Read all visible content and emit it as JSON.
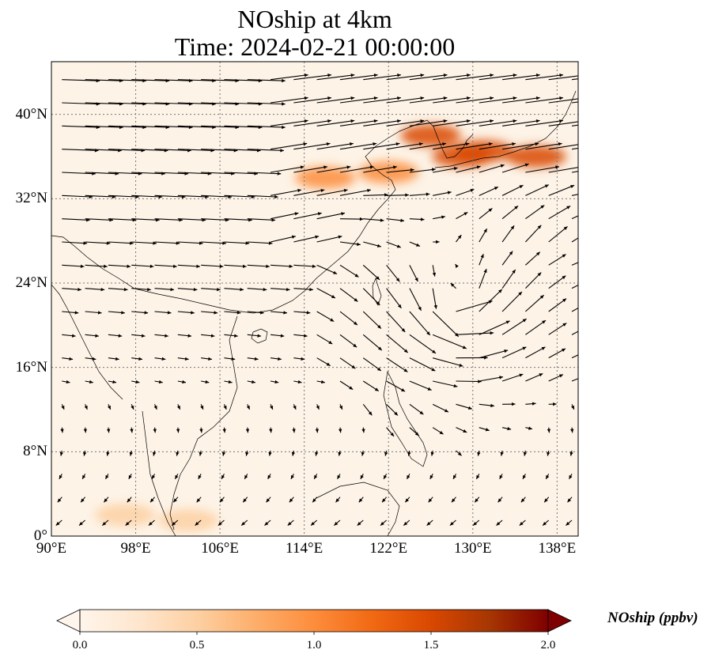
{
  "title": {
    "line1": "NOship at 4km",
    "line2": "Time: 2024-02-21 00:00:00"
  },
  "map": {
    "lon_range": [
      90,
      140
    ],
    "lat_range": [
      0,
      45
    ],
    "lon_ticks": [
      {
        "value": 90,
        "label": "90°E"
      },
      {
        "value": 98,
        "label": "98°E"
      },
      {
        "value": 106,
        "label": "106°E"
      },
      {
        "value": 114,
        "label": "114°E"
      },
      {
        "value": 122,
        "label": "122°E"
      },
      {
        "value": 130,
        "label": "130°E"
      },
      {
        "value": 138,
        "label": "138°E"
      }
    ],
    "lat_ticks": [
      {
        "value": 0,
        "label": "0°"
      },
      {
        "value": 8,
        "label": "8°N"
      },
      {
        "value": 16,
        "label": "16°N"
      },
      {
        "value": 24,
        "label": "24°N"
      },
      {
        "value": 32,
        "label": "32°N"
      },
      {
        "value": 40,
        "label": "40°N"
      }
    ],
    "gridlines": true,
    "wind_vectors": true,
    "high_concentration_regions": [
      {
        "lon": 116,
        "lat": 34,
        "value": 1.1
      },
      {
        "lon": 122,
        "lat": 34.5,
        "value": 1.0
      },
      {
        "lon": 126,
        "lat": 38,
        "value": 1.4
      },
      {
        "lon": 129,
        "lat": 36,
        "value": 1.6
      },
      {
        "lon": 131,
        "lat": 36.5,
        "value": 1.4
      },
      {
        "lon": 136,
        "lat": 36,
        "value": 1.5
      },
      {
        "lon": 97,
        "lat": 2,
        "value": 0.4
      },
      {
        "lon": 103,
        "lat": 1.5,
        "value": 0.45
      }
    ]
  },
  "colorbar": {
    "label": "NOship (ppbv)",
    "min": 0.0,
    "max": 2.0,
    "extend": "both",
    "ticks": [
      {
        "value": 0.0,
        "label": "0.0"
      },
      {
        "value": 0.5,
        "label": "0.5"
      },
      {
        "value": 1.0,
        "label": "1.0"
      },
      {
        "value": 1.5,
        "label": "1.5"
      },
      {
        "value": 2.0,
        "label": "2.0"
      }
    ],
    "colors": [
      "#fff5eb",
      "#fee6ce",
      "#fdd0a2",
      "#fdae6b",
      "#fd8d3c",
      "#f16913",
      "#d94801",
      "#a63603",
      "#7f0000"
    ]
  }
}
